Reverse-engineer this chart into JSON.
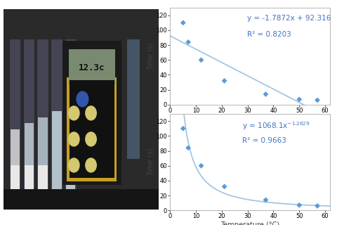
{
  "scatter_x": [
    5,
    7,
    12,
    21,
    37,
    50,
    57
  ],
  "scatter_y": [
    110,
    84,
    60,
    32,
    14,
    7,
    6
  ],
  "linear_eq": "y = -1.7872x + 92.316",
  "linear_r2": "R² = 0.8203",
  "power_r2": "R² = 0.9663",
  "xlabel": "Temperature (°C)",
  "ylabel": "Time (s)",
  "xlim": [
    0,
    62
  ],
  "ylim": [
    0,
    130
  ],
  "yticks": [
    0,
    20,
    40,
    60,
    80,
    100,
    120
  ],
  "xticks": [
    0,
    10,
    20,
    30,
    40,
    50,
    60
  ],
  "scatter_color": "#5B9BD5",
  "line_color": "#9DC3E6",
  "curve_color": "#9DC3E6",
  "box_edge_color": "#aaaaaa",
  "annotation_color": "#4472C4",
  "bg_color": "#ffffff",
  "label_fontsize": 7,
  "tick_fontsize": 6,
  "annot_fontsize": 7.5,
  "photo_bg": "#2a2a2a",
  "photo_tube_colors": [
    "#e8e8e8",
    "#c8d4dc",
    "#b0b8b8",
    "#8899aa"
  ],
  "photo_display_bg": "#7a8a70",
  "photo_device_bg": "#1a1a1a",
  "photo_border_color": "#c8a020"
}
